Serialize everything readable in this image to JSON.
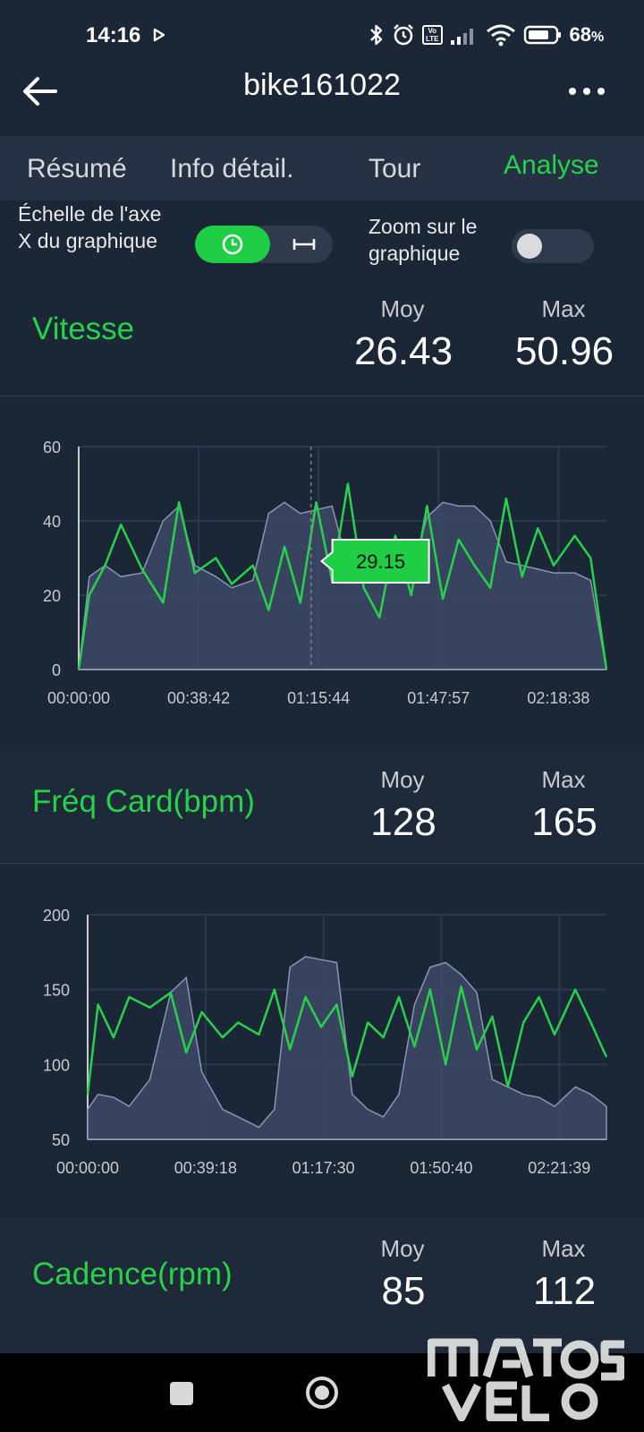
{
  "status": {
    "time": "14:16",
    "battery": "68",
    "battery_unit": "%",
    "volte": "Vo\nLTE"
  },
  "header": {
    "title": "bike161022"
  },
  "tabs": [
    {
      "label": "Résumé",
      "active": false
    },
    {
      "label": "Info détail.",
      "active": false
    },
    {
      "label": "Tour",
      "active": false
    },
    {
      "label": "Analyse",
      "active": true
    }
  ],
  "controls": {
    "x_axis_label": "Échelle de l'axe X du graphique",
    "x_axis_mode": "time",
    "zoom_label": "Zoom sur le graphique",
    "zoom_enabled": false
  },
  "metrics": [
    {
      "name": "Vitesse",
      "avg_label": "Moy",
      "avg": "26.43",
      "max_label": "Max",
      "max": "50.96"
    },
    {
      "name": "Fréq Card(bpm)",
      "avg_label": "Moy",
      "avg": "128",
      "max_label": "Max",
      "max": "165"
    },
    {
      "name": "Cadence(rpm)",
      "avg_label": "Moy",
      "avg": "85",
      "max_label": "Max",
      "max": "112"
    }
  ],
  "colors": {
    "accent": "#27d24a",
    "background": "#1b2636",
    "tabbar": "#263244",
    "area_fill": "#3d4a66",
    "area_line": "#8a95b6"
  },
  "watermark": "matos vélo",
  "chart_data": [
    {
      "type": "line",
      "ylim": [
        0,
        60
      ],
      "yticks": [
        0,
        20,
        40,
        60
      ],
      "xticks": [
        "00:00:00",
        "00:38:42",
        "01:15:44",
        "01:47:57",
        "02:18:38"
      ],
      "x": [
        0,
        0.02,
        0.05,
        0.08,
        0.12,
        0.16,
        0.19,
        0.22,
        0.26,
        0.29,
        0.33,
        0.36,
        0.39,
        0.42,
        0.45,
        0.48,
        0.51,
        0.54,
        0.57,
        0.6,
        0.63,
        0.66,
        0.69,
        0.72,
        0.75,
        0.78,
        0.81,
        0.84,
        0.87,
        0.9,
        0.94,
        0.97,
        1.0
      ],
      "tooltip": {
        "x": 0.44,
        "label": "29.15"
      },
      "series": [
        {
          "style": "area",
          "values": [
            0,
            25,
            28,
            25,
            26,
            40,
            44,
            28,
            25,
            22,
            24,
            42,
            45,
            42,
            43,
            44,
            28,
            25,
            27,
            24,
            26,
            41,
            45,
            44,
            44,
            40,
            29,
            28,
            27,
            26,
            26,
            24,
            0
          ]
        },
        {
          "style": "line",
          "values": [
            0,
            20,
            28,
            39,
            27,
            18,
            45,
            26,
            30,
            23,
            28,
            16,
            33,
            18,
            45,
            24,
            50,
            22,
            14,
            36,
            20,
            44,
            19,
            35,
            28,
            22,
            46,
            25,
            38,
            28,
            36,
            30,
            0
          ]
        }
      ]
    },
    {
      "type": "line",
      "ylim": [
        50,
        200
      ],
      "yticks": [
        50,
        100,
        150,
        200
      ],
      "xticks": [
        "00:00:00",
        "00:39:18",
        "01:17:30",
        "01:50:40",
        "02:21:39"
      ],
      "x": [
        0,
        0.02,
        0.05,
        0.08,
        0.12,
        0.16,
        0.19,
        0.22,
        0.26,
        0.29,
        0.33,
        0.36,
        0.39,
        0.42,
        0.45,
        0.48,
        0.51,
        0.54,
        0.57,
        0.6,
        0.63,
        0.66,
        0.69,
        0.72,
        0.75,
        0.78,
        0.81,
        0.84,
        0.87,
        0.9,
        0.94,
        0.97,
        1.0
      ],
      "series": [
        {
          "style": "area",
          "values": [
            70,
            80,
            78,
            72,
            90,
            148,
            158,
            95,
            70,
            65,
            58,
            70,
            165,
            172,
            170,
            168,
            80,
            70,
            65,
            80,
            140,
            165,
            168,
            160,
            148,
            90,
            85,
            80,
            78,
            72,
            85,
            80,
            72
          ]
        },
        {
          "style": "line",
          "values": [
            80,
            140,
            118,
            145,
            138,
            148,
            108,
            135,
            118,
            128,
            120,
            150,
            110,
            145,
            125,
            140,
            92,
            128,
            118,
            145,
            112,
            150,
            100,
            152,
            110,
            132,
            85,
            128,
            145,
            120,
            150,
            128,
            105
          ]
        }
      ]
    }
  ]
}
